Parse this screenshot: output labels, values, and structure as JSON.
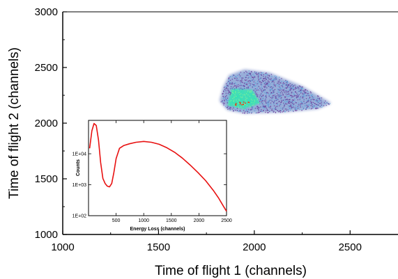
{
  "chart_data": [
    {
      "type": "heatmap",
      "xlabel": "Time of flight 1 (channels)",
      "ylabel": "Time of flight 2 (channels)",
      "xlim": [
        1000,
        2750
      ],
      "ylim": [
        1000,
        3000
      ],
      "xticks": [
        1000,
        1500,
        2000,
        2500
      ],
      "yticks": [
        1000,
        1500,
        2000,
        2500,
        3000
      ],
      "grid": false,
      "colormap": [
        "#6a3d9a",
        "#5aa0d8",
        "#2ee8b0",
        "#7cf09a",
        "#e04020"
      ],
      "density_cluster": {
        "outline": [
          [
            1840,
            2330
          ],
          [
            1870,
            2430
          ],
          [
            1950,
            2480
          ],
          [
            2080,
            2450
          ],
          [
            2250,
            2330
          ],
          [
            2400,
            2180
          ],
          [
            2330,
            2130
          ],
          [
            2150,
            2100
          ],
          [
            1950,
            2090
          ],
          [
            1860,
            2120
          ],
          [
            1820,
            2200
          ]
        ],
        "core": [
          [
            1860,
            2160
          ],
          [
            1880,
            2310
          ],
          [
            1990,
            2300
          ],
          [
            2030,
            2180
          ],
          [
            1940,
            2130
          ]
        ],
        "peak": [
          1930,
          2180
        ]
      }
    },
    {
      "type": "line",
      "xlabel": "Energy Loss (channels)",
      "ylabel": "Counts",
      "xlim": [
        0,
        2500
      ],
      "ylim": [
        100,
        120000
      ],
      "yscale": "log",
      "xticks": [
        500,
        1000,
        1500,
        2000,
        2500
      ],
      "yticks": [
        100,
        1000,
        10000
      ],
      "ytick_labels": [
        "1E+02",
        "1E+03",
        "1E+04"
      ],
      "line_color": "#e81010",
      "grid": false,
      "x": [
        20,
        60,
        100,
        140,
        180,
        220,
        260,
        300,
        340,
        380,
        420,
        460,
        500,
        560,
        640,
        740,
        860,
        1000,
        1140,
        1280,
        1420,
        1560,
        1700,
        1840,
        1980,
        2120,
        2260,
        2360,
        2440,
        2500
      ],
      "y": [
        15000,
        55000,
        95000,
        82000,
        28000,
        5200,
        1600,
        1100,
        900,
        850,
        1100,
        2500,
        7000,
        15000,
        18500,
        21000,
        23500,
        25000,
        23500,
        20000,
        15500,
        11000,
        7200,
        4400,
        2500,
        1350,
        650,
        360,
        210,
        140
      ]
    }
  ]
}
